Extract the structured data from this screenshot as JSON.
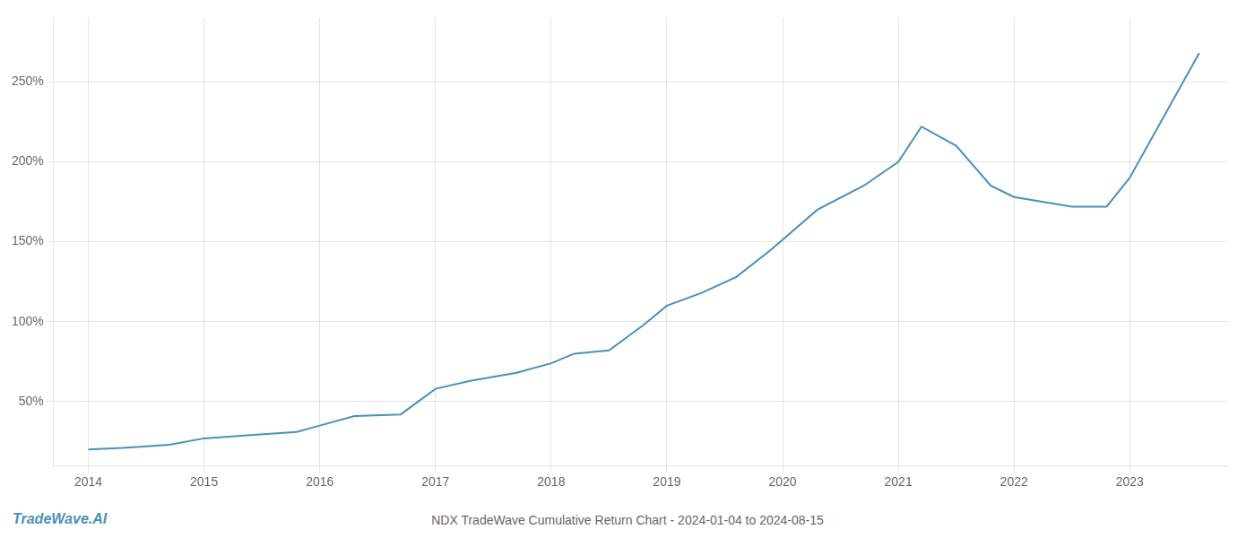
{
  "chart_data": {
    "type": "line",
    "title": "NDX TradeWave Cumulative Return Chart - 2024-01-04 to 2024-08-15",
    "annotations": [
      "TradeWave.AI"
    ],
    "x": [
      2014.0,
      2014.3,
      2014.7,
      2015.0,
      2015.4,
      2015.8,
      2016.0,
      2016.3,
      2016.7,
      2017.0,
      2017.3,
      2017.7,
      2018.0,
      2018.2,
      2018.5,
      2018.8,
      2019.0,
      2019.3,
      2019.6,
      2019.9,
      2020.3,
      2020.7,
      2021.0,
      2021.2,
      2021.5,
      2021.8,
      2022.0,
      2022.5,
      2022.8,
      2023.0,
      2023.6
    ],
    "values": [
      20,
      21,
      23,
      27,
      29,
      31,
      35,
      41,
      42,
      58,
      63,
      68,
      74,
      80,
      82,
      98,
      110,
      118,
      128,
      145,
      170,
      185,
      200,
      222,
      210,
      185,
      178,
      172,
      172,
      190,
      268
    ],
    "color": "#4a90b8",
    "xlim": [
      2013.7,
      2023.85
    ],
    "xticks": [
      2014,
      2015,
      2016,
      2017,
      2018,
      2019,
      2020,
      2021,
      2022,
      2023
    ],
    "ylim": [
      10,
      290
    ],
    "yticks": [
      {
        "value": 50,
        "label": "50%"
      },
      {
        "value": 100,
        "label": "100%"
      },
      {
        "value": 150,
        "label": "150%"
      },
      {
        "value": 200,
        "label": "200%"
      },
      {
        "value": 250,
        "label": "250%"
      }
    ],
    "grid": true
  }
}
